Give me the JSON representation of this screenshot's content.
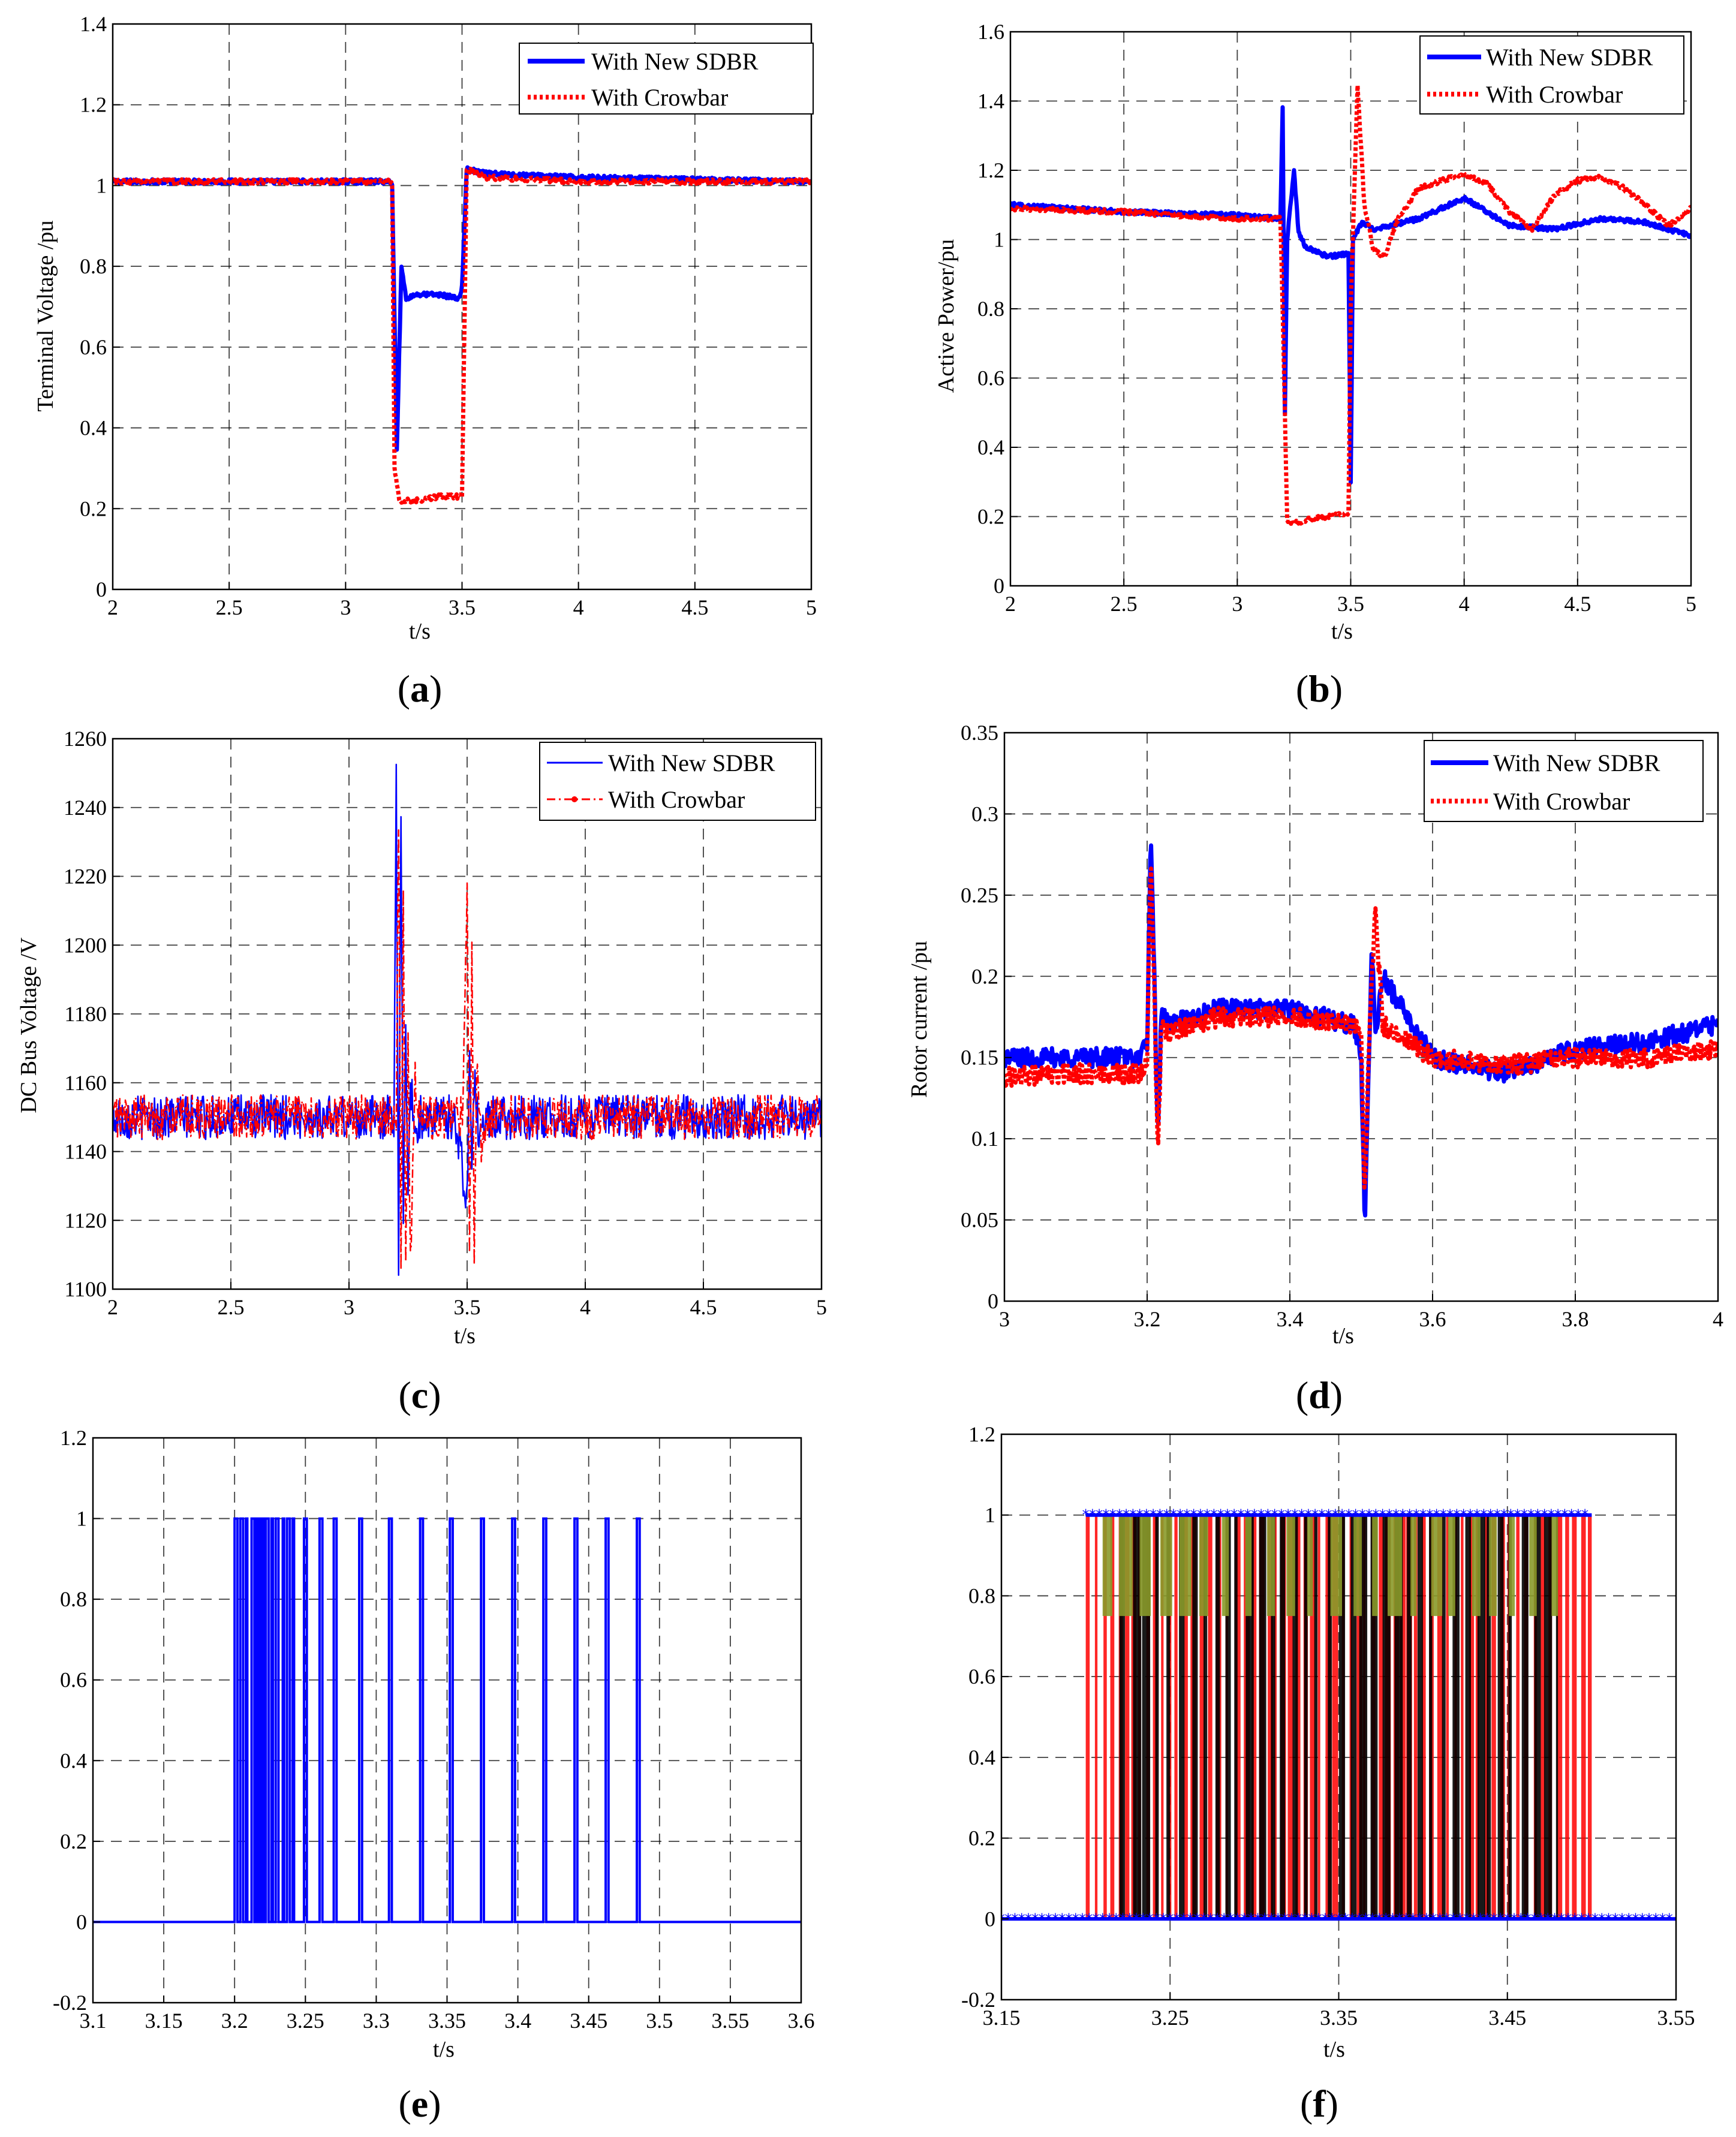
{
  "colors": {
    "blue": "#0000ff",
    "red": "#ff0000",
    "olive": "#8a9a2a"
  },
  "chart_data": [
    {
      "id": "a",
      "type": "line",
      "panel_label": "a",
      "xlabel": "t/s",
      "ylabel": "Terminal Voltage /pu",
      "xlim": [
        2,
        5
      ],
      "ylim": [
        0,
        1.4
      ],
      "xticks": [
        2,
        2.5,
        3,
        3.5,
        4,
        4.5,
        5
      ],
      "xticklabels": [
        "2",
        "2.5",
        "3",
        "3.5",
        "4",
        "4.5",
        "5"
      ],
      "yticks": [
        0,
        0.2,
        0.4,
        0.6,
        0.8,
        1,
        1.2,
        1.4
      ],
      "yticklabels": [
        "0",
        "0.2",
        "0.4",
        "0.6",
        "0.8",
        "1",
        "1.2",
        "1.4"
      ],
      "grid": true,
      "legend": "top-right",
      "series": [
        {
          "name": "With New SDBR",
          "color": "#0000ff",
          "style": "solid",
          "width": 7,
          "x": [
            2.0,
            3.19,
            3.2,
            3.22,
            3.24,
            3.26,
            3.3,
            3.4,
            3.49,
            3.5,
            3.52,
            3.6,
            4.0,
            5.0
          ],
          "y": [
            1.01,
            1.01,
            1.0,
            0.35,
            0.8,
            0.72,
            0.73,
            0.73,
            0.72,
            0.75,
            1.04,
            1.03,
            1.02,
            1.01
          ]
        },
        {
          "name": "With Crowbar",
          "color": "#ff0000",
          "style": "dotted",
          "width": 7,
          "x": [
            2.0,
            3.19,
            3.2,
            3.21,
            3.23,
            3.25,
            3.3,
            3.4,
            3.49,
            3.5,
            3.52,
            3.6,
            4.0,
            5.0
          ],
          "y": [
            1.01,
            1.01,
            1.0,
            0.3,
            0.22,
            0.22,
            0.22,
            0.23,
            0.23,
            0.23,
            1.04,
            1.02,
            1.01,
            1.01
          ]
        }
      ]
    },
    {
      "id": "b",
      "type": "line",
      "panel_label": "b",
      "xlabel": "t/s",
      "ylabel": "Active Power/pu",
      "xlim": [
        2,
        5
      ],
      "ylim": [
        0,
        1.6
      ],
      "xticks": [
        2,
        2.5,
        3,
        3.5,
        4,
        4.5,
        5
      ],
      "xticklabels": [
        "2",
        "2.5",
        "3",
        "3.5",
        "4",
        "4.5",
        "5"
      ],
      "yticks": [
        0,
        0.2,
        0.4,
        0.6,
        0.8,
        1,
        1.2,
        1.4,
        1.6
      ],
      "yticklabels": [
        "0",
        "0.2",
        "0.4",
        "0.6",
        "0.8",
        "1",
        "1.2",
        "1.4",
        "1.6"
      ],
      "grid": true,
      "legend": "top-right",
      "series": [
        {
          "name": "With New SDBR",
          "color": "#0000ff",
          "style": "solid",
          "width": 7,
          "x": [
            2.0,
            2.5,
            3.0,
            3.19,
            3.2,
            3.21,
            3.22,
            3.25,
            3.27,
            3.3,
            3.4,
            3.49,
            3.5,
            3.51,
            3.55,
            3.6,
            3.8,
            4.0,
            4.2,
            4.4,
            4.6,
            4.8,
            5.0
          ],
          "y": [
            1.1,
            1.08,
            1.07,
            1.06,
            1.38,
            0.5,
            1.0,
            1.2,
            1.02,
            0.98,
            0.95,
            0.96,
            0.3,
            1.0,
            1.05,
            1.03,
            1.06,
            1.12,
            1.04,
            1.03,
            1.06,
            1.05,
            1.01
          ]
        },
        {
          "name": "With Crowbar",
          "color": "#ff0000",
          "style": "dotted",
          "width": 7,
          "x": [
            2.0,
            2.5,
            3.0,
            3.19,
            3.2,
            3.22,
            3.25,
            3.3,
            3.4,
            3.49,
            3.5,
            3.53,
            3.56,
            3.6,
            3.65,
            3.7,
            3.8,
            4.0,
            4.1,
            4.2,
            4.3,
            4.4,
            4.5,
            4.6,
            4.7,
            4.8,
            4.9,
            5.0
          ],
          "y": [
            1.09,
            1.08,
            1.06,
            1.06,
            0.8,
            0.19,
            0.18,
            0.19,
            0.2,
            0.21,
            0.8,
            1.45,
            1.1,
            0.97,
            0.95,
            1.05,
            1.15,
            1.19,
            1.16,
            1.08,
            1.03,
            1.13,
            1.17,
            1.18,
            1.15,
            1.1,
            1.04,
            1.09
          ]
        }
      ]
    },
    {
      "id": "c",
      "type": "line",
      "panel_label": "c",
      "xlabel": "t/s",
      "ylabel": "DC Bus Voltage /V",
      "xlim": [
        2,
        5
      ],
      "ylim": [
        1100,
        1260
      ],
      "xticks": [
        2,
        2.5,
        3,
        3.5,
        4,
        4.5,
        5
      ],
      "xticklabels": [
        "2",
        "2.5",
        "3",
        "3.5",
        "4",
        "4.5",
        "5"
      ],
      "yticks": [
        1100,
        1120,
        1140,
        1160,
        1180,
        1200,
        1220,
        1240,
        1260
      ],
      "yticklabels": [
        "1100",
        "1120",
        "1140",
        "1160",
        "1180",
        "1200",
        "1220",
        "1240",
        "1260"
      ],
      "grid": true,
      "legend": "top-right",
      "series": [
        {
          "name": "With New SDBR",
          "color": "#0000ff",
          "style": "solid",
          "width": 2.5,
          "x": [
            2.0,
            2.5,
            3.0,
            3.19,
            3.2,
            3.21,
            3.22,
            3.23,
            3.24,
            3.25,
            3.26,
            3.28,
            3.3,
            3.45,
            3.5,
            3.51,
            3.52,
            3.53,
            3.55,
            3.6,
            4.0,
            4.5,
            5.0
          ],
          "y": [
            1150,
            1150,
            1150,
            1150,
            1250,
            1110,
            1240,
            1115,
            1180,
            1125,
            1160,
            1145,
            1150,
            1150,
            1125,
            1170,
            1135,
            1160,
            1145,
            1150,
            1150,
            1150,
            1150
          ]
        },
        {
          "name": "With Crowbar",
          "color": "#ff0000",
          "style": "dashdot",
          "width": 2.5,
          "x": [
            2.0,
            2.5,
            3.0,
            3.2,
            3.21,
            3.22,
            3.23,
            3.24,
            3.25,
            3.26,
            3.28,
            3.3,
            3.48,
            3.5,
            3.51,
            3.52,
            3.53,
            3.54,
            3.56,
            3.6,
            4.0,
            4.5,
            5.0
          ],
          "y": [
            1150,
            1150,
            1150,
            1150,
            1235,
            1105,
            1215,
            1103,
            1175,
            1110,
            1160,
            1150,
            1150,
            1220,
            1110,
            1200,
            1112,
            1165,
            1140,
            1150,
            1150,
            1150,
            1150
          ]
        }
      ]
    },
    {
      "id": "d",
      "type": "line",
      "panel_label": "d",
      "xlabel": "t/s",
      "ylabel": "Rotor current  /pu",
      "xlim": [
        3,
        4
      ],
      "ylim": [
        0,
        0.35
      ],
      "xticks": [
        3,
        3.2,
        3.4,
        3.6,
        3.8,
        4
      ],
      "xticklabels": [
        "3",
        "3.2",
        "3.4",
        "3.6",
        "3.8",
        "4"
      ],
      "yticks": [
        0,
        0.05,
        0.1,
        0.15,
        0.2,
        0.25,
        0.3,
        0.35
      ],
      "yticklabels": [
        "0",
        "0.05",
        "0.1",
        "0.15",
        "0.2",
        "0.25",
        "0.3",
        "0.35"
      ],
      "grid": true,
      "legend": "top-right",
      "series": [
        {
          "name": "With New SDBR",
          "color": "#0000ff",
          "style": "solid",
          "width": 7,
          "x": [
            3.0,
            3.1,
            3.19,
            3.2,
            3.205,
            3.21,
            3.215,
            3.22,
            3.23,
            3.3,
            3.4,
            3.49,
            3.5,
            3.505,
            3.51,
            3.515,
            3.52,
            3.53,
            3.6,
            3.7,
            3.8,
            3.9,
            4.0
          ],
          "y": [
            0.15,
            0.15,
            0.15,
            0.16,
            0.285,
            0.2,
            0.1,
            0.18,
            0.17,
            0.18,
            0.18,
            0.17,
            0.15,
            0.045,
            0.14,
            0.22,
            0.16,
            0.2,
            0.15,
            0.14,
            0.155,
            0.16,
            0.17
          ]
        },
        {
          "name": "With Crowbar",
          "color": "#ff0000",
          "style": "dotted",
          "width": 7,
          "x": [
            3.0,
            3.1,
            3.19,
            3.2,
            3.205,
            3.21,
            3.215,
            3.22,
            3.23,
            3.3,
            3.4,
            3.49,
            3.5,
            3.505,
            3.51,
            3.515,
            3.52,
            3.53,
            3.6,
            3.7,
            3.8,
            3.9,
            4.0
          ],
          "y": [
            0.138,
            0.14,
            0.14,
            0.15,
            0.275,
            0.19,
            0.085,
            0.17,
            0.165,
            0.175,
            0.175,
            0.17,
            0.16,
            0.06,
            0.15,
            0.2,
            0.24,
            0.17,
            0.15,
            0.145,
            0.15,
            0.15,
            0.155
          ]
        }
      ]
    },
    {
      "id": "e",
      "type": "line",
      "panel_label": "e",
      "xlabel": "t/s",
      "ylabel": "",
      "xlim": [
        3.1,
        3.6
      ],
      "ylim": [
        -0.2,
        1.2
      ],
      "xticks": [
        3.1,
        3.15,
        3.2,
        3.25,
        3.3,
        3.35,
        3.4,
        3.45,
        3.5,
        3.55,
        3.6
      ],
      "xticklabels": [
        "3.1",
        "3.15",
        "3.2",
        "3.25",
        "3.3",
        "3.35",
        "3.4",
        "3.45",
        "3.5",
        "3.55",
        "3.6"
      ],
      "yticks": [
        -0.2,
        0,
        0.2,
        0.4,
        0.6,
        0.8,
        1,
        1.2
      ],
      "yticklabels": [
        "-0.2",
        "0",
        "0.2",
        "0.4",
        "0.6",
        "0.8",
        "1",
        "1.2"
      ],
      "grid": true,
      "legend": "none",
      "series": [
        {
          "color": "#0000ff",
          "style": "pulses",
          "width": 4,
          "level_low": 0,
          "level_high": 1,
          "pulses": [
            [
              3.2,
              3.202
            ],
            [
              3.204,
              3.206
            ],
            [
              3.208,
              3.209
            ],
            [
              3.212,
              3.214
            ],
            [
              3.215,
              3.216
            ],
            [
              3.217,
              3.218
            ],
            [
              3.219,
              3.2205
            ],
            [
              3.222,
              3.224
            ],
            [
              3.226,
              3.227
            ],
            [
              3.229,
              3.231
            ],
            [
              3.234,
              3.235
            ],
            [
              3.237,
              3.239
            ],
            [
              3.241,
              3.242
            ],
            [
              3.249,
              3.251
            ],
            [
              3.26,
              3.262
            ],
            [
              3.27,
              3.272
            ],
            [
              3.288,
              3.29
            ],
            [
              3.309,
              3.311
            ],
            [
              3.331,
              3.333
            ],
            [
              3.352,
              3.354
            ],
            [
              3.374,
              3.376
            ],
            [
              3.396,
              3.398
            ],
            [
              3.418,
              3.42
            ],
            [
              3.44,
              3.442
            ],
            [
              3.462,
              3.464
            ],
            [
              3.484,
              3.486
            ]
          ]
        }
      ]
    },
    {
      "id": "f",
      "type": "line",
      "panel_label": "f",
      "xlabel": "t/s",
      "ylabel": "",
      "xlim": [
        3.15,
        3.55
      ],
      "ylim": [
        -0.2,
        1.2
      ],
      "xticks": [
        3.15,
        3.25,
        3.35,
        3.45,
        3.55
      ],
      "xticklabels": [
        "3.15",
        "3.25",
        "3.35",
        "3.45",
        "3.55"
      ],
      "yticks": [
        -0.2,
        0,
        0.2,
        0.4,
        0.6,
        0.8,
        1,
        1.2
      ],
      "yticklabels": [
        "-0.2",
        "0",
        "0.2",
        "0.4",
        "0.6",
        "0.8",
        "1",
        "1.2"
      ],
      "grid": true,
      "legend": "none",
      "switching_window": [
        3.2,
        3.5
      ],
      "series": [
        {
          "color": "#0000ff",
          "style": "markers",
          "width": 5,
          "level_low": 0,
          "level_high": 1,
          "x_on": [
            3.2,
            3.5
          ]
        },
        {
          "color": "#ff0000",
          "style": "pulse-train",
          "width": 3,
          "level_low": 0,
          "level_high": 1,
          "x_range": [
            3.2,
            3.5
          ],
          "period": 0.0045
        },
        {
          "color": "#000000",
          "style": "pulse-train",
          "width": 2,
          "level_low": 0,
          "level_high": 1,
          "x_range": [
            3.22,
            3.48
          ],
          "period": 0.0062
        },
        {
          "color": "#8a9a2a",
          "style": "pulse-train",
          "width": 3,
          "level_low": 0.75,
          "level_high": 1,
          "x_range": [
            3.21,
            3.48
          ],
          "period": 0.011
        }
      ]
    }
  ]
}
